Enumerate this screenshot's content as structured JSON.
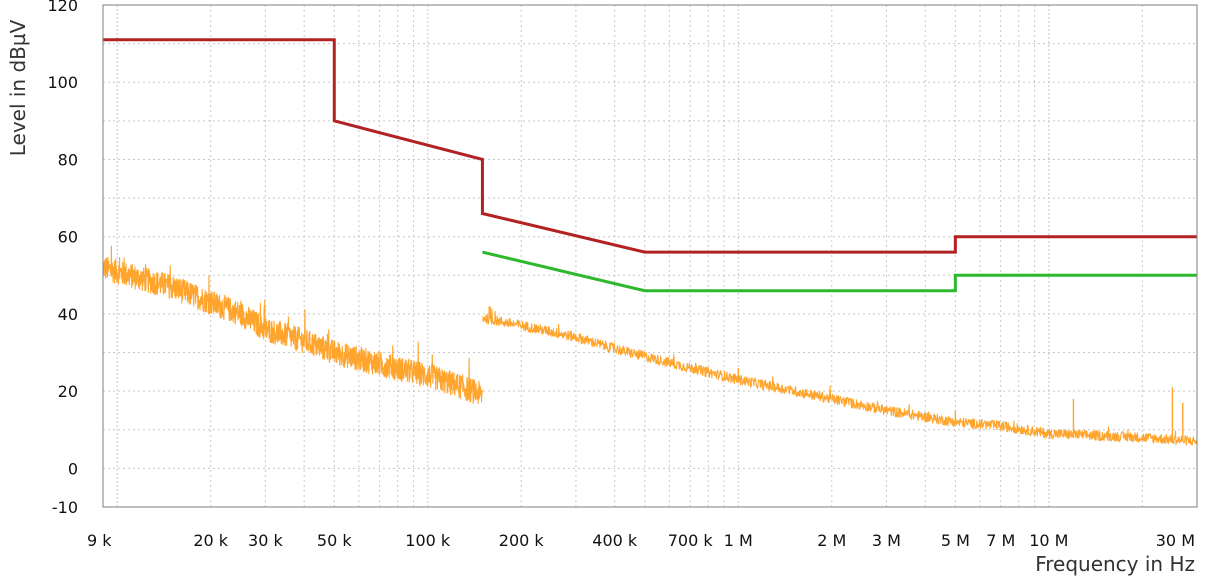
{
  "chart_data": {
    "type": "line",
    "title": "",
    "xlabel": "Frequency in Hz",
    "ylabel": "Level in  dBµV",
    "x_scale": "log",
    "xlim": [
      9000,
      30000000
    ],
    "ylim": [
      -10,
      120
    ],
    "grid": true,
    "legend": "none",
    "colors": {
      "limit_qp": "#b22222",
      "limit_avg": "#2eb82e",
      "measurement": "#ffa52e",
      "grid": "#c8c8c8",
      "frame": "#7f7f7f"
    },
    "x_ticks": [
      {
        "value": 9000,
        "label": "9 k"
      },
      {
        "value": 20000,
        "label": "20 k"
      },
      {
        "value": 30000,
        "label": "30 k"
      },
      {
        "value": 50000,
        "label": "50 k"
      },
      {
        "value": 100000,
        "label": "100 k"
      },
      {
        "value": 200000,
        "label": "200 k"
      },
      {
        "value": 400000,
        "label": "400 k"
      },
      {
        "value": 700000,
        "label": "700 k"
      },
      {
        "value": 1000000,
        "label": "1 M"
      },
      {
        "value": 2000000,
        "label": "2 M"
      },
      {
        "value": 3000000,
        "label": "3 M"
      },
      {
        "value": 5000000,
        "label": "5 M"
      },
      {
        "value": 7000000,
        "label": "7 M"
      },
      {
        "value": 10000000,
        "label": "10 M"
      },
      {
        "value": 30000000,
        "label": "30 M"
      }
    ],
    "y_ticks": [
      {
        "value": 120,
        "label": "120"
      },
      {
        "value": 100,
        "label": "100"
      },
      {
        "value": 80,
        "label": "80"
      },
      {
        "value": 60,
        "label": "60"
      },
      {
        "value": 40,
        "label": "40"
      },
      {
        "value": 20,
        "label": "20"
      },
      {
        "value": 0,
        "label": "0"
      },
      {
        "value": -10,
        "label": "-10"
      }
    ],
    "series": [
      {
        "key": "limit_qp",
        "x": [
          9000,
          50000,
          50000,
          150000,
          150000,
          500000,
          5000000,
          5000000,
          30000000
        ],
        "y": [
          111,
          111,
          90,
          80,
          66,
          56,
          56,
          60,
          60
        ]
      },
      {
        "key": "limit_avg",
        "x": [
          150000,
          500000,
          5000000,
          5000000,
          30000000
        ],
        "y": [
          56,
          46,
          46,
          50,
          50
        ]
      },
      {
        "key": "measurement",
        "segments": [
          {
            "x": [
              9000,
              12000,
              15000,
              20000,
              25000,
              30000,
              40000,
              50000,
              70000,
              100000,
              130000,
              150000
            ],
            "y": [
              52,
              49,
              47,
              43,
              40,
              36,
              33,
              30,
              27,
              24,
              21,
              19
            ],
            "noise": 3.2
          },
          {
            "x": [
              150000,
              200000,
              300000,
              400000,
              500000,
              700000,
              1000000,
              2000000,
              3000000,
              5000000,
              7000000,
              10000000,
              20000000,
              30000000
            ],
            "y": [
              39,
              37,
              34,
              31,
              29,
              26,
              23,
              18,
              15,
              12,
              11,
              9,
              8,
              7
            ],
            "noise": 1.3
          }
        ],
        "spikes": [
          {
            "x": 500000,
            "y": 29
          },
          {
            "x": 1000000,
            "y": 26
          },
          {
            "x": 5000000,
            "y": 15
          },
          {
            "x": 12000000,
            "y": 18
          },
          {
            "x": 25000000,
            "y": 21
          },
          {
            "x": 27000000,
            "y": 17
          }
        ]
      }
    ]
  }
}
